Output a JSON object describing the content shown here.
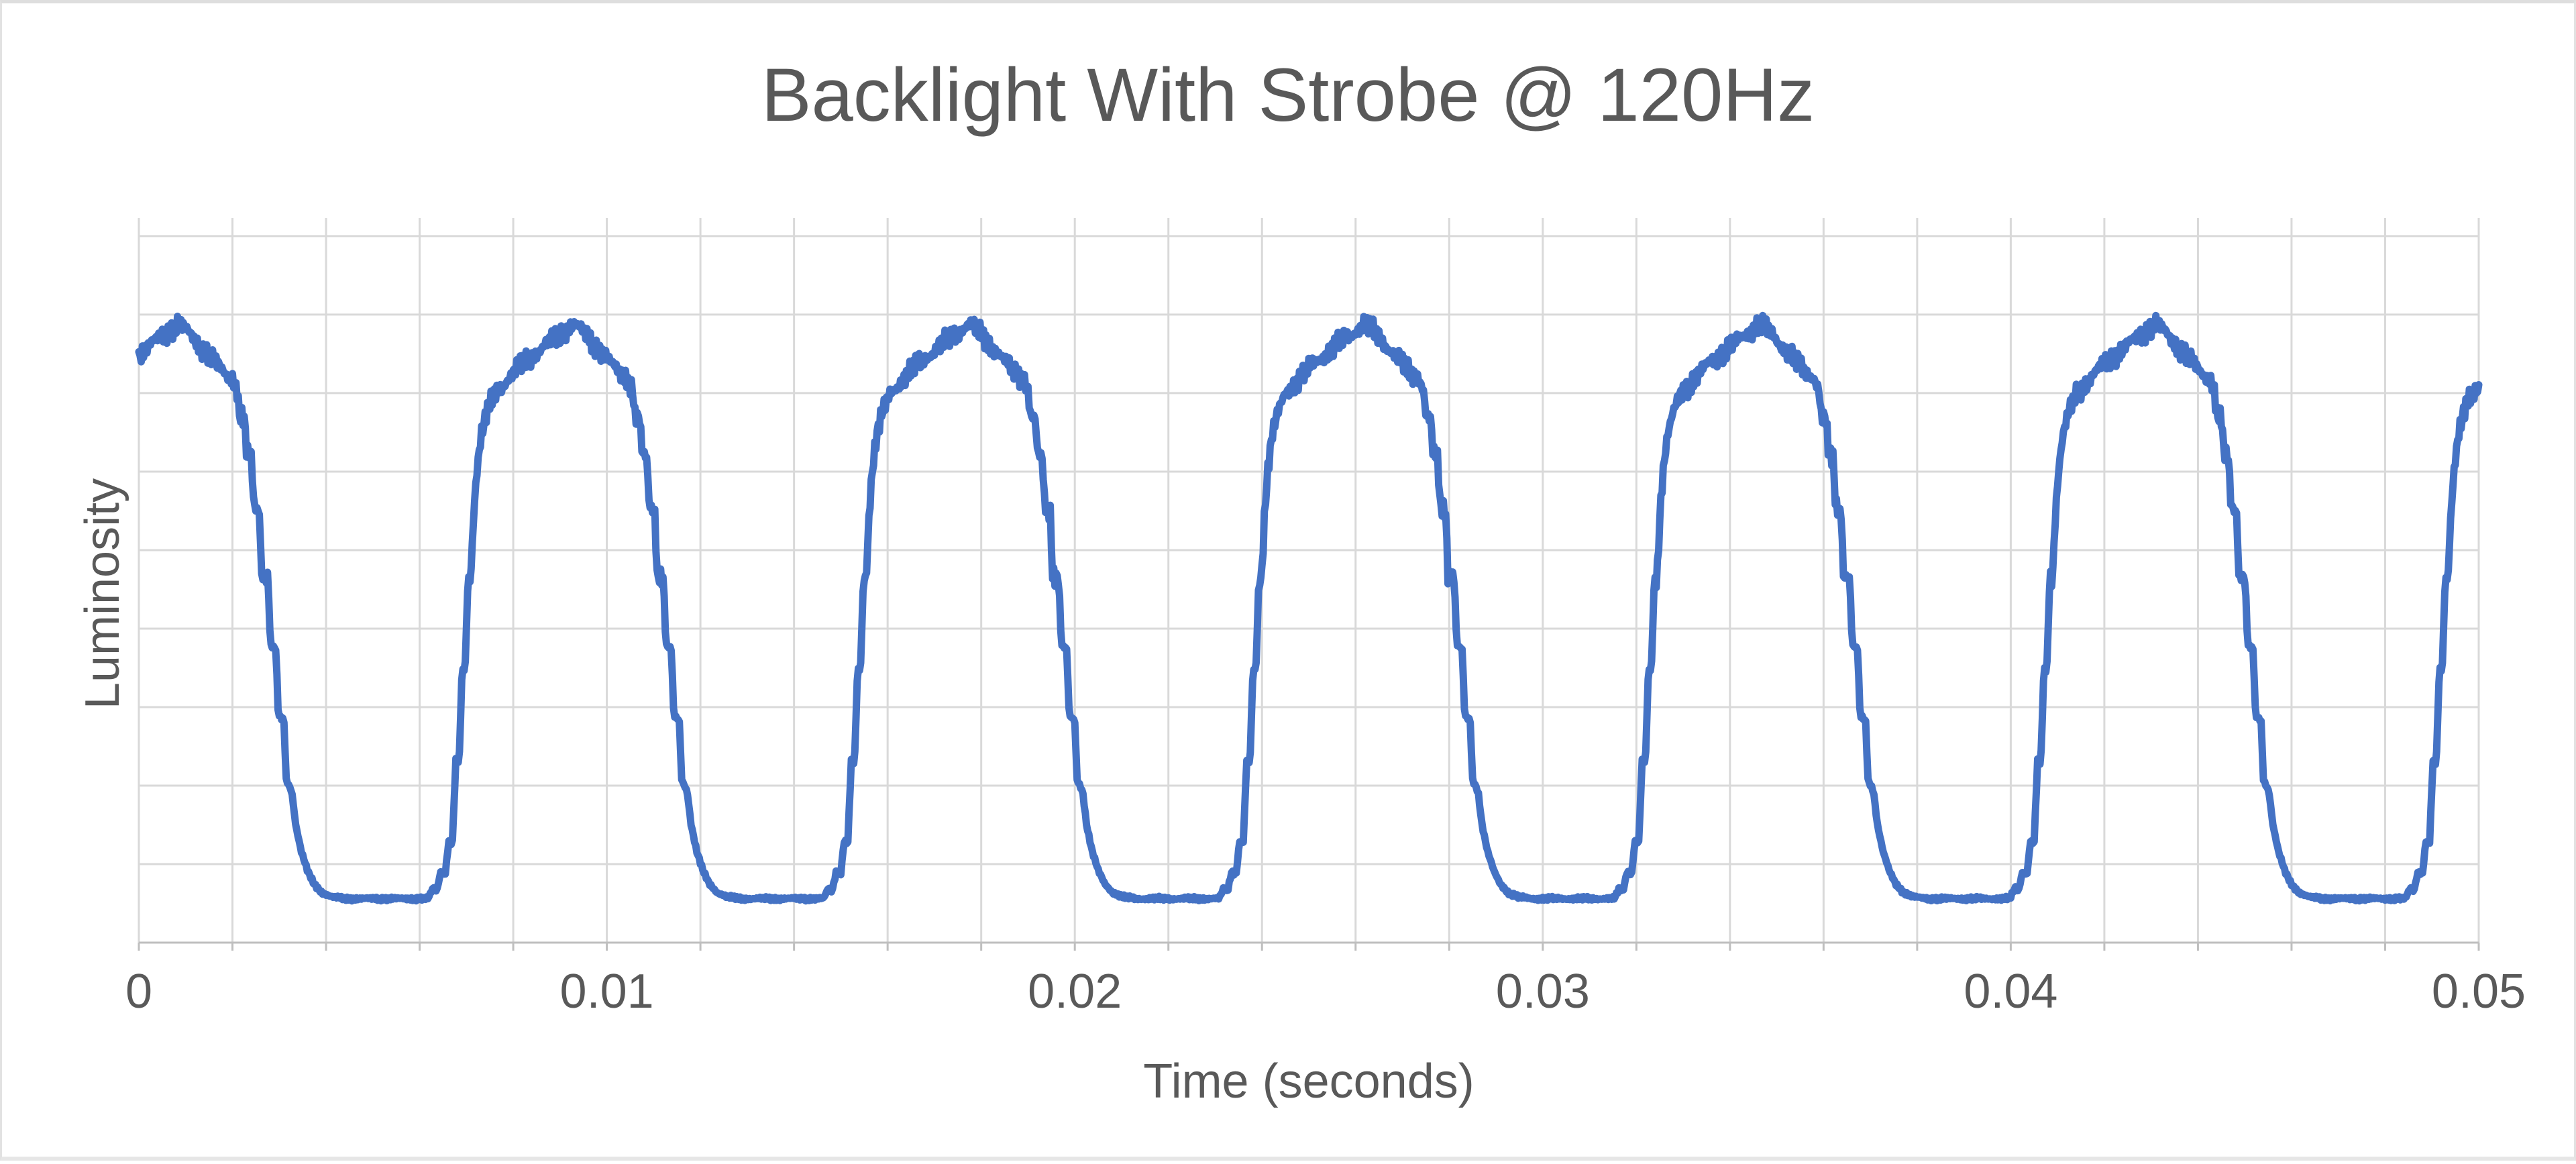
{
  "chart_data": {
    "type": "line",
    "title": "Backlight With Strobe @ 120Hz",
    "xlabel": "Time (seconds)",
    "ylabel": "Luminosity",
    "x_tick_labels": [
      "0",
      "0.01",
      "0.02",
      "0.03",
      "0.04",
      "0.05"
    ],
    "x_tick_values": [
      0,
      0.01,
      0.02,
      0.03,
      0.04,
      0.05
    ],
    "xlim": [
      0,
      0.05
    ],
    "ylim": [
      0,
      0.923
    ],
    "y_tick_labels_visible": false,
    "y_gridline_step": 0.1,
    "x_minor_gridline_step": 0.002,
    "grid": true,
    "legend": "none",
    "series": [
      {
        "name": "Luminosity",
        "color": "#4472C4",
        "stroke_width": 11,
        "waveform": {
          "shape": "strobed-backlight pulse train, stepped edges, noisy domed high plateau",
          "nominal_frequency_hz": 120,
          "period_s": 0.00845,
          "first_fall_start_s": 0.002,
          "high_plateau_level": 0.75,
          "peak_level": 0.79,
          "low_plateau_level": 0.056,
          "noise_amplitude_high": 0.016,
          "noise_amplitude_low": 0.003,
          "cycle_profile_phase_level": [
            [
              0.0,
              0.72
            ],
            [
              0.012,
              0.703
            ],
            [
              0.018,
              0.67
            ],
            [
              0.03,
              0.664
            ],
            [
              0.036,
              0.622
            ],
            [
              0.048,
              0.616
            ],
            [
              0.054,
              0.558
            ],
            [
              0.068,
              0.551
            ],
            [
              0.074,
              0.471
            ],
            [
              0.09,
              0.464
            ],
            [
              0.096,
              0.379
            ],
            [
              0.11,
              0.373
            ],
            [
              0.116,
              0.289
            ],
            [
              0.13,
              0.283
            ],
            [
              0.136,
              0.208
            ],
            [
              0.15,
              0.193
            ],
            [
              0.16,
              0.15
            ],
            [
              0.174,
              0.116
            ],
            [
              0.19,
              0.091
            ],
            [
              0.206,
              0.075
            ],
            [
              0.226,
              0.064
            ],
            [
              0.252,
              0.058
            ],
            [
              0.285,
              0.056
            ],
            [
              0.495,
              0.056
            ],
            [
              0.508,
              0.07
            ],
            [
              0.516,
              0.065
            ],
            [
              0.527,
              0.091
            ],
            [
              0.538,
              0.087
            ],
            [
              0.547,
              0.13
            ],
            [
              0.556,
              0.126
            ],
            [
              0.565,
              0.232
            ],
            [
              0.573,
              0.227
            ],
            [
              0.581,
              0.35
            ],
            [
              0.588,
              0.345
            ],
            [
              0.596,
              0.468
            ],
            [
              0.602,
              0.463
            ],
            [
              0.611,
              0.558
            ],
            [
              0.619,
              0.608
            ],
            [
              0.629,
              0.646
            ],
            [
              0.643,
              0.673
            ],
            [
              0.662,
              0.698
            ],
            [
              0.692,
              0.716
            ],
            [
              0.733,
              0.737
            ],
            [
              0.782,
              0.757
            ],
            [
              0.833,
              0.777
            ],
            [
              0.862,
              0.788
            ],
            [
              0.892,
              0.776
            ],
            [
              0.926,
              0.756
            ],
            [
              0.958,
              0.737
            ],
            [
              0.984,
              0.725
            ],
            [
              1.0,
              0.72
            ]
          ]
        }
      }
    ],
    "colors": {
      "series_blue": "#4472C4",
      "text_gray": "#595959",
      "gridline_gray": "#D9D9D9",
      "axis_gray": "#BFBFBF",
      "background": "#FFFFFF"
    }
  }
}
